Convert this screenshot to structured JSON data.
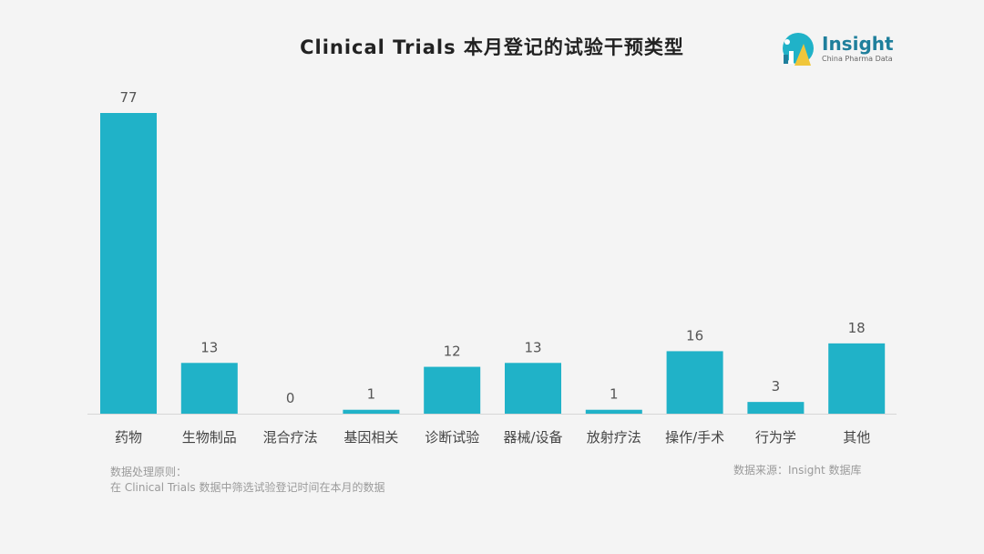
{
  "title": "Clinical Trials 本月登记的试验干预类型",
  "logo": {
    "name": "Insight",
    "subtitle": "China Pharma Data",
    "colors": [
      "#20b2c8",
      "#f0c63a",
      "#1f7f9c"
    ]
  },
  "note": {
    "line1": "数据处理原则：",
    "line2": "在 Clinical Trials 数据中筛选试验登记时间在本月的数据"
  },
  "source": "数据来源：Insight 数据库",
  "chart_data": {
    "type": "bar",
    "title": "Clinical Trials 本月登记的试验干预类型",
    "categories": [
      "药物",
      "生物制品",
      "混合疗法",
      "基因相关",
      "诊断试验",
      "器械/设备",
      "放射疗法",
      "操作/手术",
      "行为学",
      "其他"
    ],
    "values": [
      77,
      13,
      0,
      1,
      12,
      13,
      1,
      16,
      3,
      18
    ],
    "ylim": [
      0,
      77
    ],
    "grid": false,
    "legend": "none",
    "bar_color": "#20b2c8"
  }
}
